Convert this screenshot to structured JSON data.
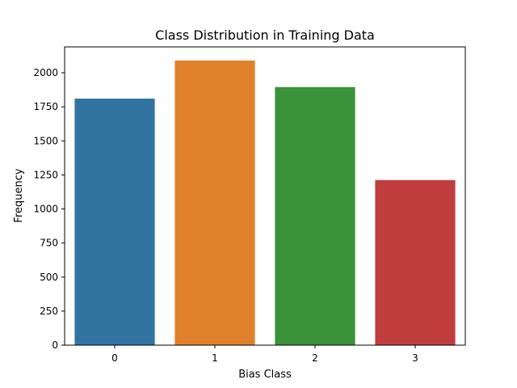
{
  "chart_data": {
    "type": "bar",
    "title": "Class Distribution in Training Data",
    "xlabel": "Bias Class",
    "ylabel": "Frequency",
    "categories": [
      "0",
      "1",
      "2",
      "3"
    ],
    "values": [
      1810,
      2090,
      1895,
      1212
    ],
    "colors": [
      "#3274a1",
      "#e1812c",
      "#3a923a",
      "#c03d3e"
    ],
    "ylim": [
      0,
      2190
    ],
    "yticks": [
      0,
      250,
      500,
      750,
      1000,
      1250,
      1500,
      1750,
      2000
    ],
    "ytick_labels": [
      "0",
      "250",
      "500",
      "750",
      "1000",
      "1250",
      "1500",
      "1750",
      "2000"
    ],
    "grid": false,
    "legend": false
  }
}
